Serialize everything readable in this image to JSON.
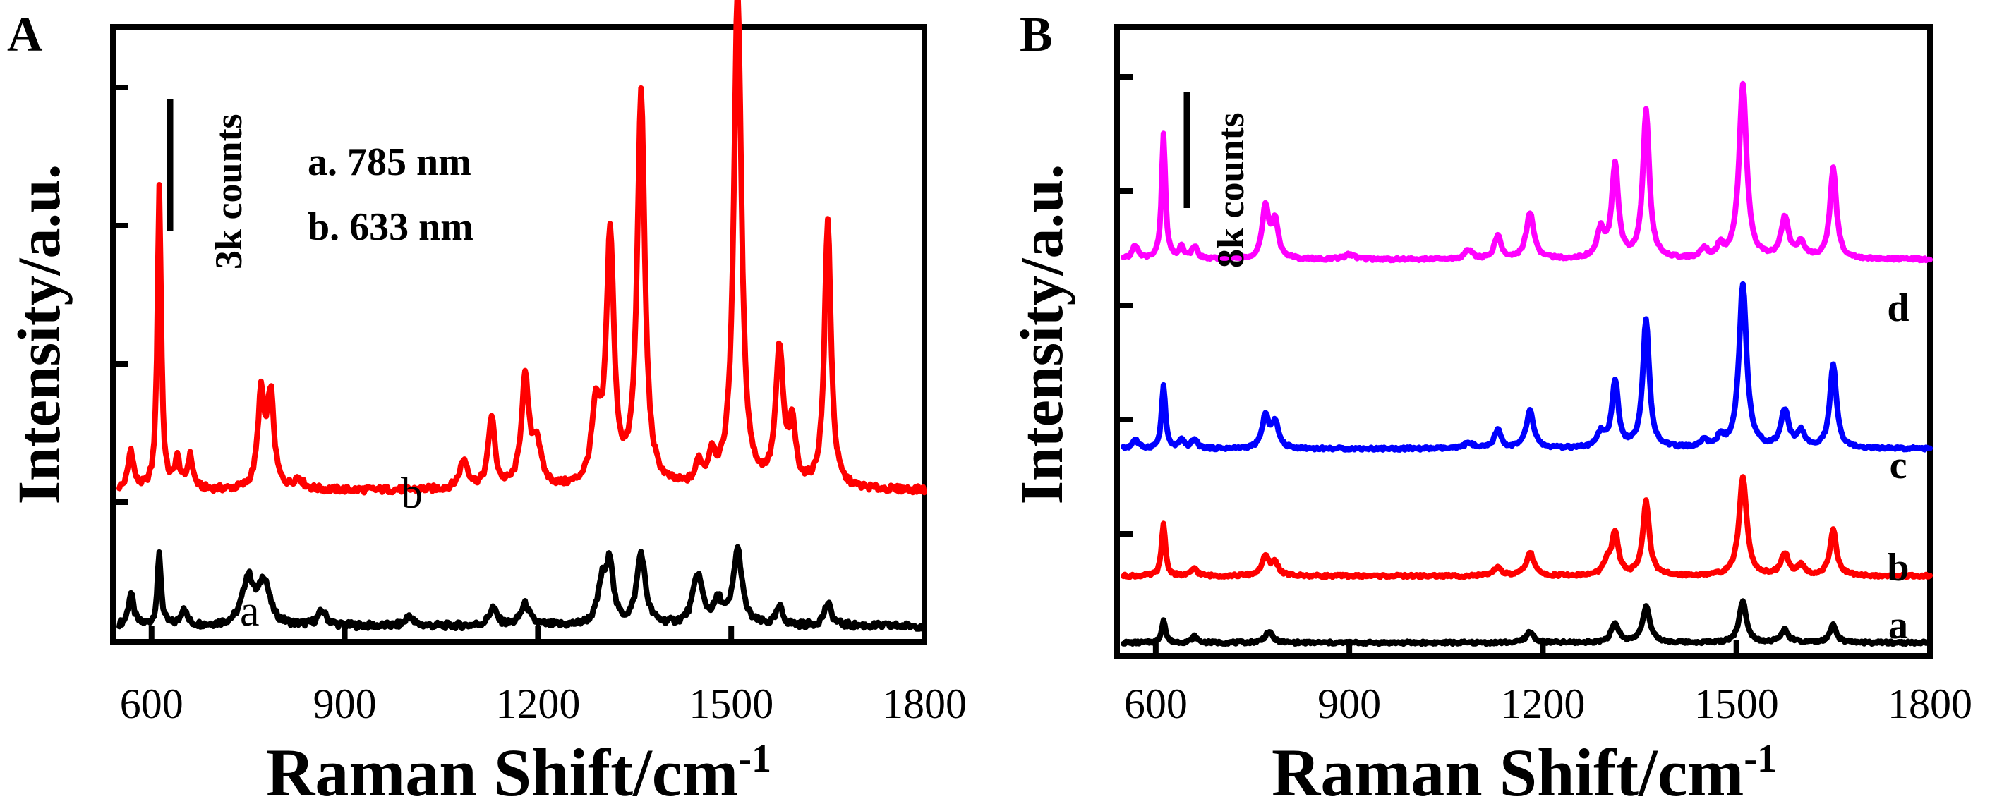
{
  "chart_data": [
    {
      "panel": "A",
      "type": "line",
      "xlabel": "Raman Shift/cm",
      "xlabel_sup": "-1",
      "ylabel": "Intensity/a.u.",
      "xlim": [
        540,
        1800
      ],
      "x_ticks": [
        600,
        900,
        1200,
        1500,
        1800
      ],
      "y_tick_count": 5,
      "scale_bar_label": "3k counts",
      "legend": [
        "a. 785 nm",
        "b. 633 nm"
      ],
      "series": [
        {
          "name": "a",
          "label": "a",
          "excitation": "785 nm",
          "color": "#000000",
          "baseline": 0.2,
          "peaks": [
            [
              568,
              0.9,
              5
            ],
            [
              612,
              2.0,
              3.5
            ],
            [
              650,
              0.5,
              5
            ],
            [
              750,
              1.3,
              11
            ],
            [
              775,
              1.2,
              10
            ],
            [
              865,
              0.4,
              8
            ],
            [
              1000,
              0.3,
              6
            ],
            [
              1130,
              0.5,
              7
            ],
            [
              1180,
              0.6,
              8
            ],
            [
              1300,
              1.2,
              8
            ],
            [
              1312,
              1.6,
              6
            ],
            [
              1360,
              2.0,
              8
            ],
            [
              1448,
              1.4,
              9
            ],
            [
              1480,
              0.6,
              8
            ],
            [
              1510,
              2.1,
              8
            ],
            [
              1575,
              0.5,
              6
            ],
            [
              1650,
              0.6,
              7
            ]
          ]
        },
        {
          "name": "b",
          "label": "b",
          "excitation": "633 nm",
          "color": "#ff0000",
          "baseline": 4.0,
          "peaks": [
            [
              568,
              1.1,
              5
            ],
            [
              612,
              8.5,
              3.5
            ],
            [
              640,
              0.8,
              5
            ],
            [
              660,
              0.9,
              5
            ],
            [
              770,
              2.6,
              6
            ],
            [
              785,
              2.6,
              6
            ],
            [
              828,
              0.3,
              8
            ],
            [
              1085,
              0.8,
              8
            ],
            [
              1128,
              2.0,
              6
            ],
            [
              1180,
              3.0,
              7
            ],
            [
              1198,
              1.2,
              8
            ],
            [
              1290,
              2.0,
              8
            ],
            [
              1312,
              7.0,
              7
            ],
            [
              1360,
              11.0,
              7
            ],
            [
              1450,
              0.6,
              6
            ],
            [
              1470,
              0.8,
              6
            ],
            [
              1510,
              14.0,
              7
            ],
            [
              1575,
              3.8,
              7
            ],
            [
              1595,
              1.6,
              6
            ],
            [
              1650,
              7.5,
              6
            ]
          ]
        }
      ]
    },
    {
      "panel": "B",
      "type": "line",
      "xlabel": "Raman Shift/cm",
      "xlabel_sup": "-1",
      "ylabel": "Intensity/a.u.",
      "xlim": [
        540,
        1800
      ],
      "x_ticks": [
        600,
        900,
        1200,
        1500,
        1800
      ],
      "y_tick_count": 6,
      "scale_bar_label": "8k counts",
      "series": [
        {
          "name": "a",
          "label": "a",
          "color": "#000000",
          "baseline": 0.3,
          "peaks": [
            [
              612,
              1.5,
              3.5
            ],
            [
              660,
              0.4,
              5
            ],
            [
              775,
              0.7,
              7
            ],
            [
              1180,
              0.7,
              7
            ],
            [
              1312,
              1.2,
              7
            ],
            [
              1360,
              2.3,
              7
            ],
            [
              1510,
              2.6,
              7
            ],
            [
              1575,
              0.8,
              7
            ],
            [
              1650,
              1.1,
              6
            ]
          ]
        },
        {
          "name": "b",
          "label": "b",
          "color": "#ff0000",
          "baseline": 4.6,
          "peaks": [
            [
              612,
              3.4,
              3.5
            ],
            [
              660,
              0.5,
              5
            ],
            [
              770,
              1.2,
              7
            ],
            [
              785,
              0.8,
              6
            ],
            [
              1130,
              0.6,
              6
            ],
            [
              1180,
              1.5,
              7
            ],
            [
              1300,
              0.8,
              7
            ],
            [
              1312,
              2.7,
              6
            ],
            [
              1360,
              4.8,
              6
            ],
            [
              1510,
              6.4,
              7
            ],
            [
              1575,
              1.4,
              7
            ],
            [
              1600,
              0.6,
              7
            ],
            [
              1650,
              3.0,
              6
            ]
          ]
        },
        {
          "name": "c",
          "label": "c",
          "color": "#0000ff",
          "baseline": 12.8,
          "peaks": [
            [
              568,
              0.6,
              5
            ],
            [
              612,
              4.1,
              3.5
            ],
            [
              640,
              0.5,
              5
            ],
            [
              660,
              0.6,
              5
            ],
            [
              770,
              2.1,
              6
            ],
            [
              785,
              1.7,
              6
            ],
            [
              1085,
              0.4,
              7
            ],
            [
              1130,
              1.2,
              6
            ],
            [
              1180,
              2.4,
              7
            ],
            [
              1290,
              0.9,
              7
            ],
            [
              1312,
              4.3,
              6
            ],
            [
              1360,
              8.3,
              6
            ],
            [
              1450,
              0.5,
              6
            ],
            [
              1475,
              0.6,
              6
            ],
            [
              1510,
              10.6,
              7
            ],
            [
              1575,
              2.4,
              7
            ],
            [
              1600,
              1.0,
              7
            ],
            [
              1650,
              5.4,
              6
            ]
          ]
        },
        {
          "name": "d",
          "label": "d",
          "color": "#ff00ff",
          "baseline": 25.0,
          "peaks": [
            [
              568,
              0.9,
              5
            ],
            [
              612,
              8.0,
              3.5
            ],
            [
              640,
              0.7,
              5
            ],
            [
              660,
              0.8,
              5
            ],
            [
              770,
              3.3,
              6
            ],
            [
              785,
              2.4,
              6
            ],
            [
              900,
              0.3,
              10
            ],
            [
              1085,
              0.6,
              7
            ],
            [
              1130,
              1.5,
              6
            ],
            [
              1180,
              3.0,
              7
            ],
            [
              1290,
              1.8,
              7
            ],
            [
              1312,
              6.0,
              6
            ],
            [
              1360,
              9.5,
              6
            ],
            [
              1450,
              0.6,
              6
            ],
            [
              1475,
              0.7,
              6
            ],
            [
              1510,
              11.2,
              7
            ],
            [
              1575,
              2.6,
              7
            ],
            [
              1600,
              1.0,
              7
            ],
            [
              1650,
              5.8,
              6
            ]
          ]
        }
      ]
    }
  ]
}
